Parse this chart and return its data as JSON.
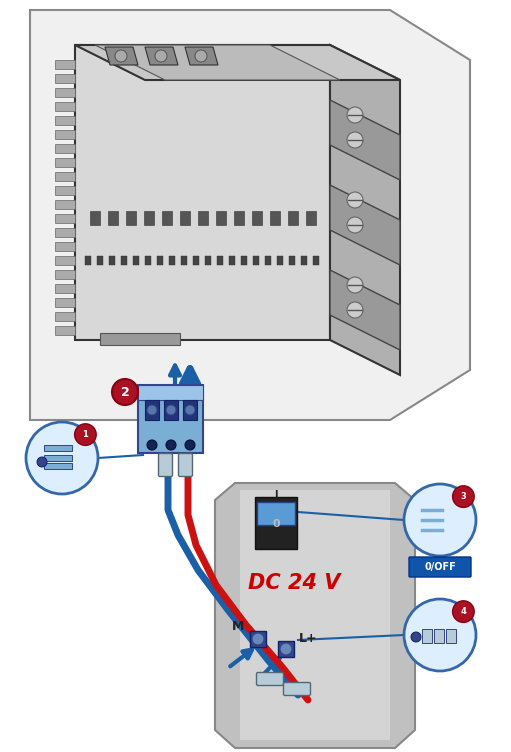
{
  "bg_color": "#ffffff",
  "fig_width": 5.11,
  "fig_height": 7.52,
  "dpi": 100,
  "plc_color": "#d8d8d8",
  "plc_outline": "#333333",
  "blue_wire": "#1a5fa8",
  "red_wire": "#cc1111",
  "connector_blue": "#5b9bd5",
  "panel_color": "#c8c8c8",
  "callout_red": "#aa1122",
  "callout_blue_fill": "#ddeeff",
  "callout_blue_stroke": "#3366aa",
  "arrow_blue": "#1a5fa8",
  "dc24v_color": "#cc0000",
  "offbg_color": "#1155aa",
  "labels": [
    "1",
    "2",
    "3",
    "4"
  ],
  "dc_text": "DC 24 V",
  "off_text": "0/OFF",
  "m_text": "M",
  "lplus_text": "L+"
}
